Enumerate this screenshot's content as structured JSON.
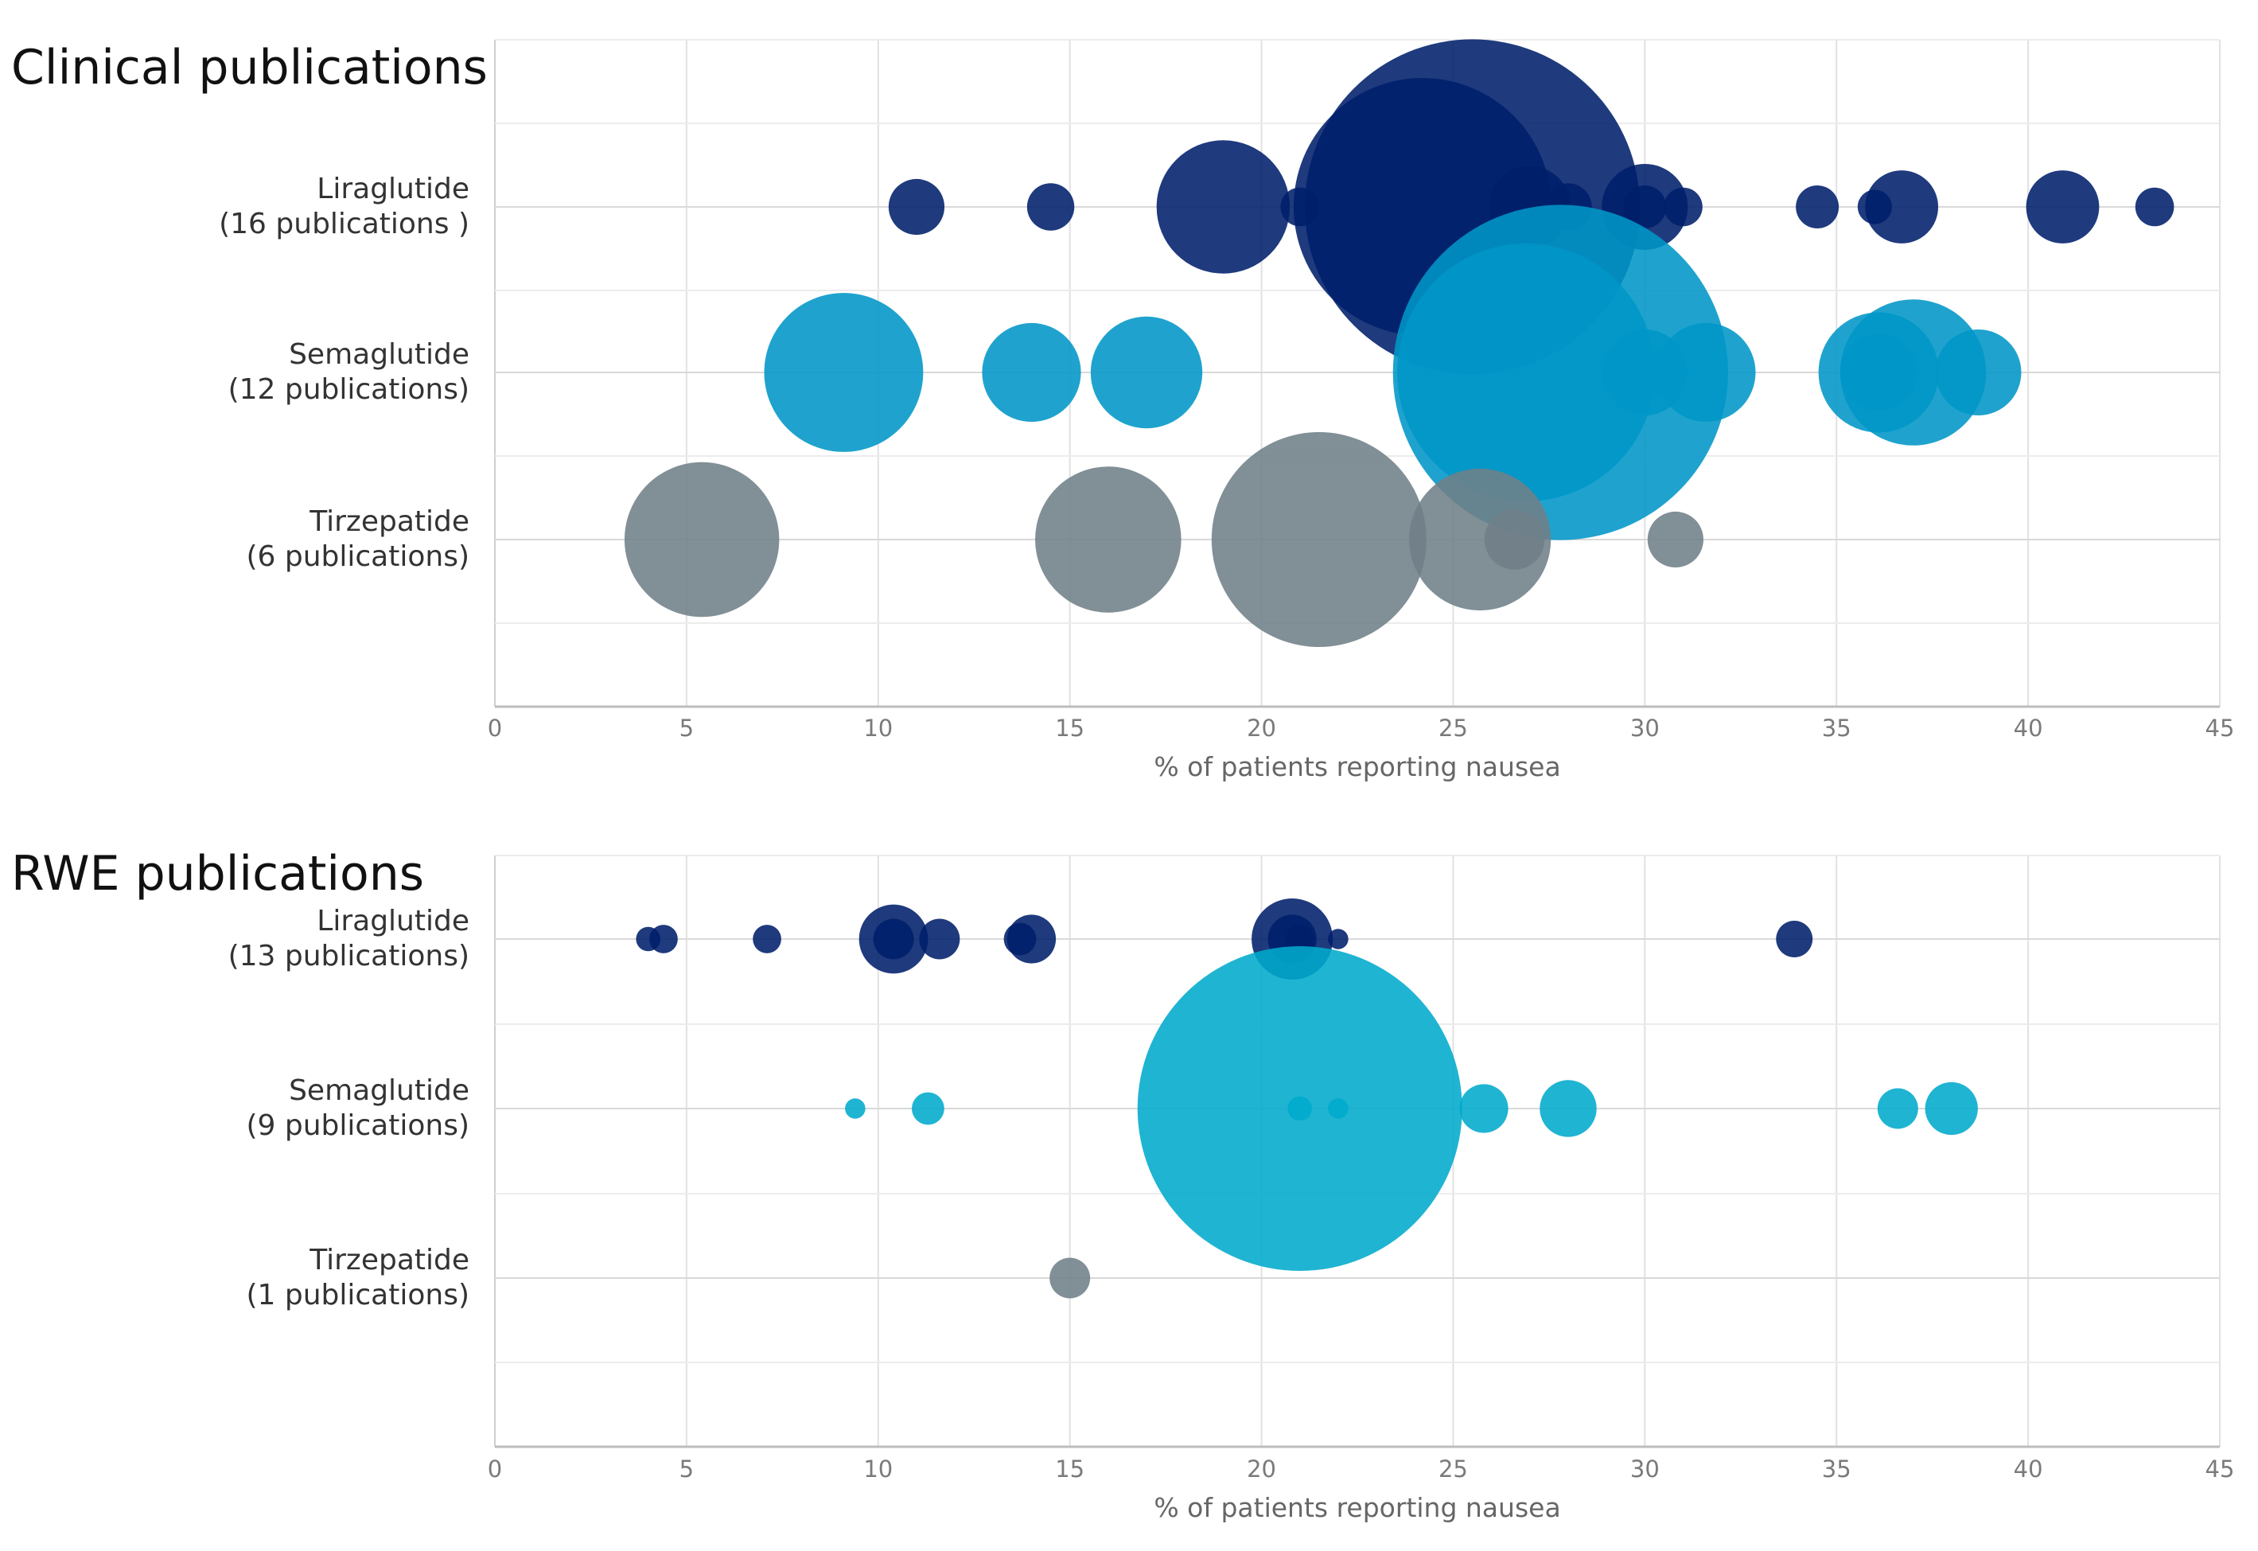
{
  "chart_data": [
    {
      "type": "bubble",
      "title": "Clinical publications",
      "xlabel": "% of patients reporting nausea",
      "xlim": [
        0,
        45
      ],
      "xticks": [
        0,
        5,
        10,
        15,
        20,
        25,
        30,
        35,
        40,
        45
      ],
      "grid": true,
      "series": [
        {
          "name": "Liraglutide",
          "label_line1": "Liraglutide",
          "label_line2": "(16 publications )",
          "color": "#001f6b",
          "points": [
            {
              "x": 11.0,
              "size": 0.65
            },
            {
              "x": 14.5,
              "size": 0.55
            },
            {
              "x": 19.0,
              "size": 1.55
            },
            {
              "x": 21.0,
              "size": 0.45
            },
            {
              "x": 24.2,
              "size": 3.0
            },
            {
              "x": 25.5,
              "size": 3.9
            },
            {
              "x": 27.0,
              "size": 0.95
            },
            {
              "x": 28.0,
              "size": 0.55
            },
            {
              "x": 30.0,
              "size": 1.0
            },
            {
              "x": 30.0,
              "size": 0.5
            },
            {
              "x": 31.0,
              "size": 0.45
            },
            {
              "x": 34.5,
              "size": 0.5
            },
            {
              "x": 36.0,
              "size": 0.4
            },
            {
              "x": 36.7,
              "size": 0.85
            },
            {
              "x": 40.9,
              "size": 0.85
            },
            {
              "x": 43.3,
              "size": 0.45
            }
          ]
        },
        {
          "name": "Semaglutide",
          "label_line1": "Semaglutide",
          "label_line2": "(12 publications)",
          "color": "#0096c7",
          "points": [
            {
              "x": 9.1,
              "size": 1.85
            },
            {
              "x": 14.0,
              "size": 1.15
            },
            {
              "x": 17.0,
              "size": 1.3
            },
            {
              "x": 26.9,
              "size": 3.0
            },
            {
              "x": 27.8,
              "size": 3.9
            },
            {
              "x": 30.0,
              "size": 1.0
            },
            {
              "x": 30.5,
              "size": 0.55
            },
            {
              "x": 31.6,
              "size": 1.15
            },
            {
              "x": 36.1,
              "size": 1.4
            },
            {
              "x": 37.0,
              "size": 1.7
            },
            {
              "x": 38.7,
              "size": 1.0
            },
            {
              "x": 36.1,
              "size": 0.9
            }
          ]
        },
        {
          "name": "Tirzepatide",
          "label_line1": "Tirzepatide",
          "label_line2": "(6 publications)",
          "color": "#6f7f87",
          "points": [
            {
              "x": 5.4,
              "size": 1.8
            },
            {
              "x": 16.0,
              "size": 1.7
            },
            {
              "x": 21.5,
              "size": 2.5
            },
            {
              "x": 25.7,
              "size": 1.65
            },
            {
              "x": 26.6,
              "size": 0.7
            },
            {
              "x": 30.8,
              "size": 0.65
            }
          ]
        }
      ]
    },
    {
      "type": "bubble",
      "title": "RWE publications",
      "xlabel": "% of patients reporting nausea",
      "xlim": [
        0,
        45
      ],
      "xticks": [
        0,
        5,
        10,
        15,
        20,
        25,
        30,
        35,
        40,
        45
      ],
      "grid": true,
      "series": [
        {
          "name": "Liraglutide",
          "label_line1": "Liraglutide",
          "label_line2": "(13 publications)",
          "color": "#001f6b",
          "points": [
            {
              "x": 4.0,
              "size": 0.3
            },
            {
              "x": 4.4,
              "size": 0.35
            },
            {
              "x": 7.1,
              "size": 0.35
            },
            {
              "x": 10.4,
              "size": 0.85
            },
            {
              "x": 11.6,
              "size": 0.5
            },
            {
              "x": 13.7,
              "size": 0.4
            },
            {
              "x": 14.0,
              "size": 0.6
            },
            {
              "x": 20.8,
              "size": 1.0
            },
            {
              "x": 21.0,
              "size": 0.35
            },
            {
              "x": 22.0,
              "size": 0.25
            },
            {
              "x": 33.9,
              "size": 0.45
            },
            {
              "x": 10.4,
              "size": 0.5
            },
            {
              "x": 20.8,
              "size": 0.6
            }
          ]
        },
        {
          "name": "Semaglutide",
          "label_line1": "Semaglutide",
          "label_line2": "(9 publications)",
          "color": "#00aacc",
          "points": [
            {
              "x": 9.4,
              "size": 0.25
            },
            {
              "x": 11.3,
              "size": 0.4
            },
            {
              "x": 21.0,
              "size": 4.0
            },
            {
              "x": 21.0,
              "size": 0.3
            },
            {
              "x": 22.0,
              "size": 0.25
            },
            {
              "x": 25.8,
              "size": 0.6
            },
            {
              "x": 28.0,
              "size": 0.7
            },
            {
              "x": 36.6,
              "size": 0.5
            },
            {
              "x": 38.0,
              "size": 0.65
            }
          ]
        },
        {
          "name": "Tirzepatide",
          "label_line1": "Tirzepatide",
          "label_line2": "(1 publications)",
          "color": "#6f7f87",
          "points": [
            {
              "x": 15.0,
              "size": 0.5
            }
          ]
        }
      ]
    }
  ]
}
